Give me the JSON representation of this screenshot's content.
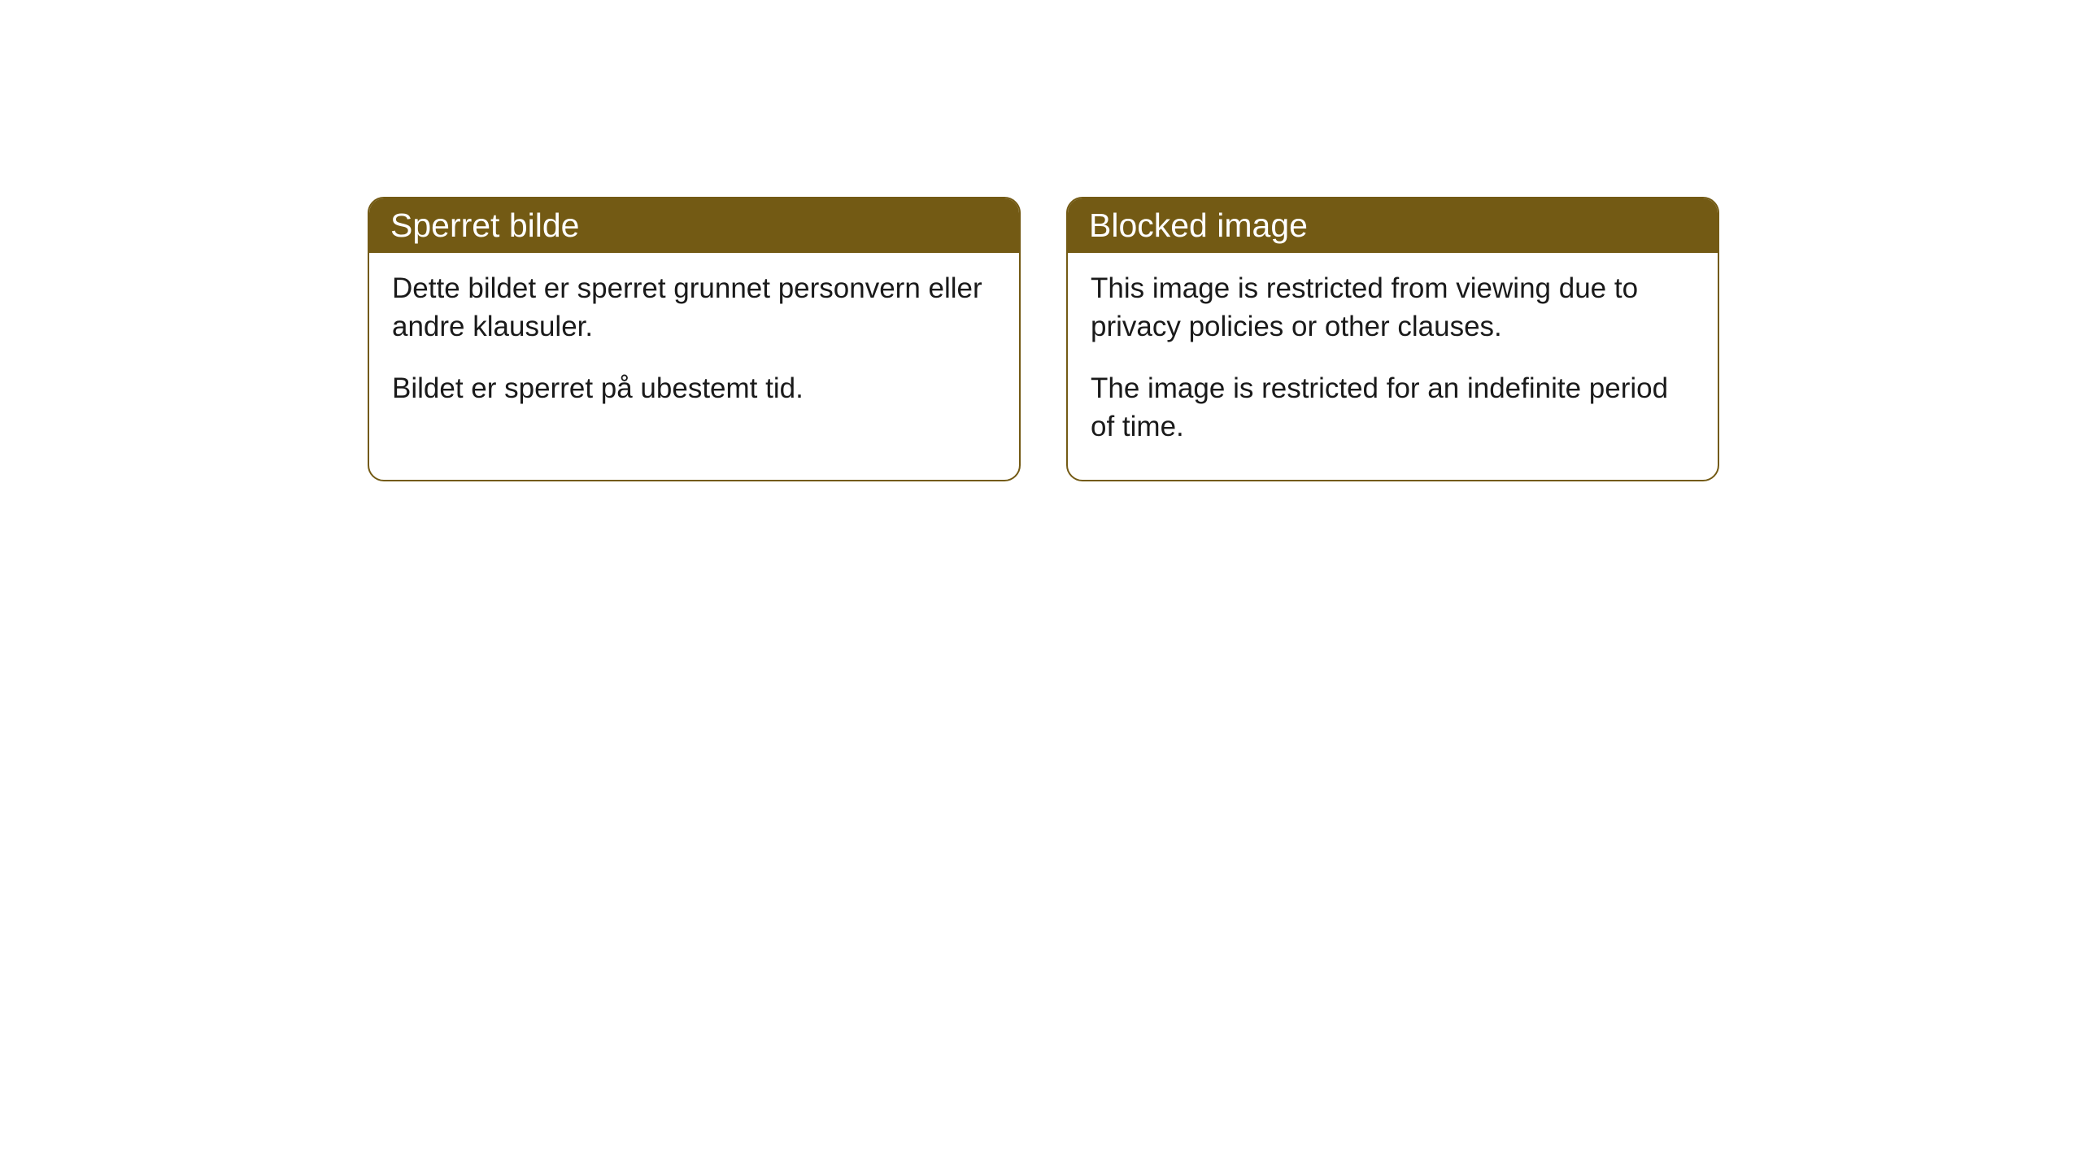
{
  "cards": [
    {
      "title": "Sperret bilde",
      "paragraph1": "Dette bildet er sperret grunnet personvern eller andre klausuler.",
      "paragraph2": "Bildet er sperret på ubestemt tid."
    },
    {
      "title": "Blocked image",
      "paragraph1": "This image is restricted from viewing due to privacy policies or other clauses.",
      "paragraph2": "The image is restricted for an indefinite period of time."
    }
  ],
  "styling": {
    "header_background": "#735a14",
    "header_text_color": "#ffffff",
    "border_color": "#735a14",
    "body_text_color": "#1a1a1a",
    "card_background": "#ffffff",
    "border_radius": 20,
    "title_fontsize": 41,
    "body_fontsize": 35
  }
}
